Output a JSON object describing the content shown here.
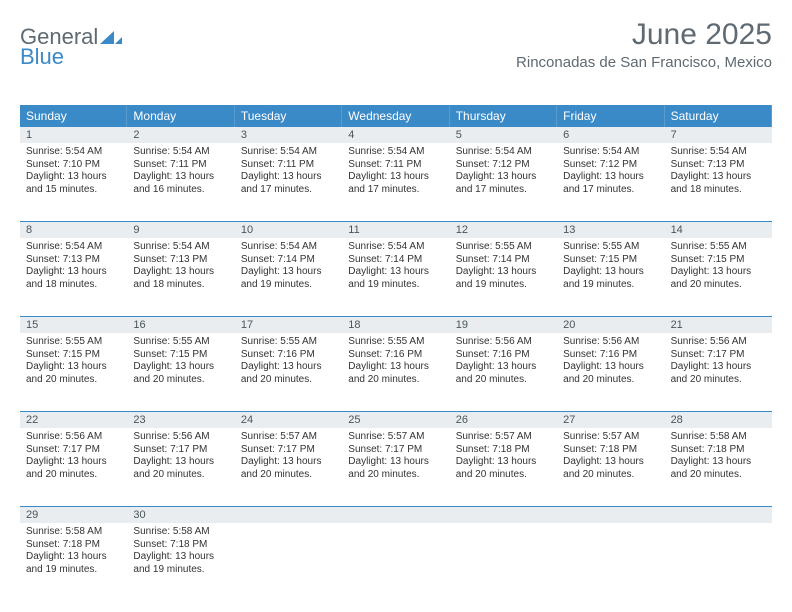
{
  "logo": {
    "text1": "General",
    "text2": "Blue"
  },
  "title": "June 2025",
  "location": "Rinconadas de San Francisco, Mexico",
  "dayNames": [
    "Sunday",
    "Monday",
    "Tuesday",
    "Wednesday",
    "Thursday",
    "Friday",
    "Saturday"
  ],
  "colors": {
    "accent": "#3a8ac8",
    "headerText": "#5f6a72",
    "dayNumBg": "#e9edef"
  },
  "weeks": [
    [
      {
        "n": "1",
        "sunrise": "5:54 AM",
        "sunset": "7:10 PM",
        "dayH": "13",
        "dayM": "15"
      },
      {
        "n": "2",
        "sunrise": "5:54 AM",
        "sunset": "7:11 PM",
        "dayH": "13",
        "dayM": "16"
      },
      {
        "n": "3",
        "sunrise": "5:54 AM",
        "sunset": "7:11 PM",
        "dayH": "13",
        "dayM": "17"
      },
      {
        "n": "4",
        "sunrise": "5:54 AM",
        "sunset": "7:11 PM",
        "dayH": "13",
        "dayM": "17"
      },
      {
        "n": "5",
        "sunrise": "5:54 AM",
        "sunset": "7:12 PM",
        "dayH": "13",
        "dayM": "17"
      },
      {
        "n": "6",
        "sunrise": "5:54 AM",
        "sunset": "7:12 PM",
        "dayH": "13",
        "dayM": "17"
      },
      {
        "n": "7",
        "sunrise": "5:54 AM",
        "sunset": "7:13 PM",
        "dayH": "13",
        "dayM": "18"
      }
    ],
    [
      {
        "n": "8",
        "sunrise": "5:54 AM",
        "sunset": "7:13 PM",
        "dayH": "13",
        "dayM": "18"
      },
      {
        "n": "9",
        "sunrise": "5:54 AM",
        "sunset": "7:13 PM",
        "dayH": "13",
        "dayM": "18"
      },
      {
        "n": "10",
        "sunrise": "5:54 AM",
        "sunset": "7:14 PM",
        "dayH": "13",
        "dayM": "19"
      },
      {
        "n": "11",
        "sunrise": "5:54 AM",
        "sunset": "7:14 PM",
        "dayH": "13",
        "dayM": "19"
      },
      {
        "n": "12",
        "sunrise": "5:55 AM",
        "sunset": "7:14 PM",
        "dayH": "13",
        "dayM": "19"
      },
      {
        "n": "13",
        "sunrise": "5:55 AM",
        "sunset": "7:15 PM",
        "dayH": "13",
        "dayM": "19"
      },
      {
        "n": "14",
        "sunrise": "5:55 AM",
        "sunset": "7:15 PM",
        "dayH": "13",
        "dayM": "20"
      }
    ],
    [
      {
        "n": "15",
        "sunrise": "5:55 AM",
        "sunset": "7:15 PM",
        "dayH": "13",
        "dayM": "20"
      },
      {
        "n": "16",
        "sunrise": "5:55 AM",
        "sunset": "7:15 PM",
        "dayH": "13",
        "dayM": "20"
      },
      {
        "n": "17",
        "sunrise": "5:55 AM",
        "sunset": "7:16 PM",
        "dayH": "13",
        "dayM": "20"
      },
      {
        "n": "18",
        "sunrise": "5:55 AM",
        "sunset": "7:16 PM",
        "dayH": "13",
        "dayM": "20"
      },
      {
        "n": "19",
        "sunrise": "5:56 AM",
        "sunset": "7:16 PM",
        "dayH": "13",
        "dayM": "20"
      },
      {
        "n": "20",
        "sunrise": "5:56 AM",
        "sunset": "7:16 PM",
        "dayH": "13",
        "dayM": "20"
      },
      {
        "n": "21",
        "sunrise": "5:56 AM",
        "sunset": "7:17 PM",
        "dayH": "13",
        "dayM": "20"
      }
    ],
    [
      {
        "n": "22",
        "sunrise": "5:56 AM",
        "sunset": "7:17 PM",
        "dayH": "13",
        "dayM": "20"
      },
      {
        "n": "23",
        "sunrise": "5:56 AM",
        "sunset": "7:17 PM",
        "dayH": "13",
        "dayM": "20"
      },
      {
        "n": "24",
        "sunrise": "5:57 AM",
        "sunset": "7:17 PM",
        "dayH": "13",
        "dayM": "20"
      },
      {
        "n": "25",
        "sunrise": "5:57 AM",
        "sunset": "7:17 PM",
        "dayH": "13",
        "dayM": "20"
      },
      {
        "n": "26",
        "sunrise": "5:57 AM",
        "sunset": "7:18 PM",
        "dayH": "13",
        "dayM": "20"
      },
      {
        "n": "27",
        "sunrise": "5:57 AM",
        "sunset": "7:18 PM",
        "dayH": "13",
        "dayM": "20"
      },
      {
        "n": "28",
        "sunrise": "5:58 AM",
        "sunset": "7:18 PM",
        "dayH": "13",
        "dayM": "20"
      }
    ],
    [
      {
        "n": "29",
        "sunrise": "5:58 AM",
        "sunset": "7:18 PM",
        "dayH": "13",
        "dayM": "19"
      },
      {
        "n": "30",
        "sunrise": "5:58 AM",
        "sunset": "7:18 PM",
        "dayH": "13",
        "dayM": "19"
      },
      null,
      null,
      null,
      null,
      null
    ]
  ],
  "labels": {
    "sunrise": "Sunrise: ",
    "sunset": "Sunset: ",
    "daylightA": "Daylight: ",
    "hoursWord": " hours",
    "andWord": "and ",
    "minutesWord": " minutes."
  }
}
